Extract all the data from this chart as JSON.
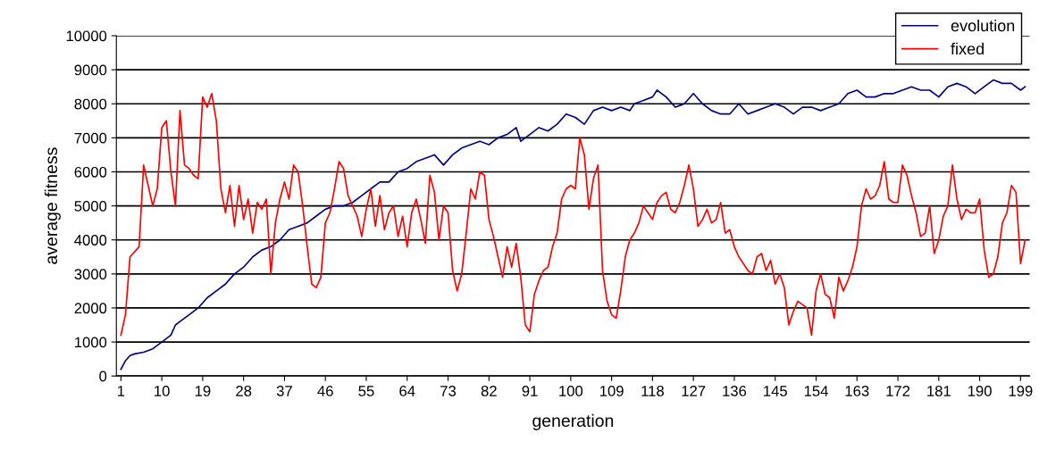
{
  "chart_data": {
    "type": "line",
    "xlabel": "generation",
    "ylabel": "average fitness",
    "xlim": [
      0,
      201
    ],
    "xticks": [
      1,
      10,
      19,
      28,
      37,
      46,
      55,
      64,
      73,
      82,
      91,
      100,
      109,
      118,
      127,
      136,
      145,
      154,
      163,
      172,
      181,
      190,
      199
    ],
    "ylim": [
      0,
      10000
    ],
    "yticks": [
      0,
      1000,
      2000,
      3000,
      4000,
      5000,
      6000,
      7000,
      8000,
      9000,
      10000
    ],
    "grid": "y",
    "legend": "top right",
    "marker": "none",
    "line_style": "solid",
    "series": [
      {
        "name": "evolution",
        "color": "#000080",
        "x": [
          1,
          2,
          3,
          4,
          6,
          8,
          10,
          12,
          13,
          14,
          16,
          18,
          20,
          22,
          24,
          26,
          28,
          30,
          32,
          34,
          36,
          38,
          40,
          42,
          44,
          46,
          48,
          50,
          52,
          54,
          56,
          58,
          60,
          62,
          64,
          66,
          68,
          70,
          72,
          74,
          76,
          78,
          80,
          82,
          84,
          86,
          88,
          89,
          91,
          93,
          95,
          97,
          99,
          101,
          103,
          105,
          107,
          109,
          111,
          113,
          114,
          116,
          118,
          119,
          121,
          123,
          125,
          127,
          129,
          131,
          133,
          135,
          137,
          139,
          141,
          143,
          145,
          147,
          149,
          151,
          153,
          155,
          157,
          159,
          161,
          163,
          165,
          167,
          169,
          171,
          173,
          175,
          177,
          179,
          181,
          183,
          185,
          187,
          189,
          191,
          193,
          195,
          197,
          199,
          200
        ],
        "values": [
          200,
          450,
          600,
          650,
          700,
          800,
          1000,
          1200,
          1500,
          1600,
          1800,
          2000,
          2300,
          2500,
          2700,
          3000,
          3200,
          3500,
          3700,
          3800,
          4000,
          4300,
          4400,
          4500,
          4700,
          4900,
          5000,
          5000,
          5100,
          5300,
          5500,
          5700,
          5700,
          6000,
          6100,
          6300,
          6400,
          6500,
          6200,
          6500,
          6700,
          6800,
          6900,
          6800,
          7000,
          7100,
          7300,
          6900,
          7100,
          7300,
          7200,
          7400,
          7700,
          7600,
          7400,
          7800,
          7900,
          7800,
          7900,
          7800,
          8000,
          8100,
          8200,
          8400,
          8200,
          7900,
          8000,
          8300,
          8000,
          7800,
          7700,
          7700,
          8000,
          7700,
          7800,
          7900,
          8000,
          7900,
          7700,
          7900,
          7900,
          7800,
          7900,
          8000,
          8300,
          8400,
          8200,
          8200,
          8300,
          8300,
          8400,
          8500,
          8400,
          8400,
          8200,
          8500,
          8600,
          8500,
          8300,
          8500,
          8700,
          8600,
          8600,
          8400,
          8500
        ]
      },
      {
        "name": "fixed",
        "color": "#ff0000",
        "x": [
          1,
          2,
          3,
          5,
          6,
          7,
          8,
          9,
          10,
          11,
          12,
          13,
          14,
          15,
          16,
          17,
          18,
          19,
          20,
          21,
          22,
          23,
          24,
          25,
          26,
          27,
          28,
          29,
          30,
          31,
          32,
          33,
          34,
          35,
          36,
          37,
          38,
          39,
          40,
          41,
          42,
          43,
          44,
          45,
          46,
          47,
          48,
          49,
          50,
          51,
          52,
          53,
          54,
          55,
          56,
          57,
          58,
          59,
          60,
          61,
          62,
          63,
          64,
          65,
          66,
          67,
          68,
          69,
          70,
          71,
          72,
          73,
          74,
          75,
          76,
          77,
          78,
          79,
          80,
          81,
          82,
          83,
          84,
          85,
          86,
          87,
          88,
          89,
          90,
          91,
          92,
          93,
          94,
          95,
          96,
          97,
          98,
          99,
          100,
          101,
          102,
          103,
          104,
          105,
          106,
          107,
          108,
          109,
          110,
          111,
          112,
          113,
          114,
          115,
          116,
          117,
          118,
          119,
          120,
          121,
          122,
          123,
          124,
          125,
          126,
          127,
          128,
          129,
          130,
          131,
          132,
          133,
          134,
          135,
          136,
          137,
          138,
          139,
          140,
          141,
          142,
          143,
          144,
          145,
          146,
          147,
          148,
          149,
          150,
          151,
          152,
          153,
          154,
          155,
          156,
          157,
          158,
          159,
          160,
          161,
          162,
          163,
          164,
          165,
          166,
          167,
          168,
          169,
          170,
          171,
          172,
          173,
          174,
          175,
          176,
          177,
          178,
          179,
          180,
          181,
          182,
          183,
          184,
          185,
          186,
          187,
          188,
          189,
          190,
          191,
          192,
          193,
          194,
          195,
          196,
          197,
          198,
          199,
          200
        ],
        "values": [
          1200,
          1800,
          3500,
          3800,
          6200,
          5600,
          5000,
          5500,
          7300,
          7500,
          6000,
          5000,
          7800,
          6200,
          6100,
          5900,
          5800,
          8200,
          7900,
          8300,
          7500,
          5500,
          4800,
          5600,
          4400,
          5600,
          4600,
          5200,
          4200,
          5100,
          4900,
          5200,
          3000,
          4500,
          5200,
          5700,
          5200,
          6200,
          6000,
          5000,
          3800,
          2700,
          2600,
          2900,
          4500,
          4800,
          5500,
          6300,
          6100,
          5300,
          5000,
          4700,
          4100,
          4900,
          5500,
          4400,
          5300,
          4300,
          4800,
          5000,
          4100,
          4700,
          3800,
          4800,
          5200,
          4600,
          3900,
          5900,
          5400,
          4000,
          5000,
          4800,
          3100,
          2500,
          3000,
          4200,
          5500,
          5200,
          6000,
          5900,
          4600,
          4100,
          3500,
          2900,
          3800,
          3200,
          3900,
          2900,
          1500,
          1300,
          2400,
          2800,
          3100,
          3200,
          3800,
          4200,
          5200,
          5500,
          5600,
          5500,
          7000,
          6500,
          4900,
          5800,
          6200,
          3100,
          2200,
          1800,
          1700,
          2500,
          3500,
          4000,
          4200,
          4500,
          5000,
          4800,
          4600,
          5100,
          5300,
          5400,
          4900,
          4800,
          5100,
          5600,
          6200,
          5500,
          4400,
          4600,
          4900,
          4500,
          4600,
          5100,
          4200,
          4300,
          3800,
          3500,
          3300,
          3100,
          3000,
          3500,
          3600,
          3100,
          3400,
          2700,
          3000,
          2600,
          1500,
          1900,
          2200,
          2100,
          2000,
          1200,
          2500,
          3000,
          2400,
          2300,
          1700,
          2900,
          2500,
          2800,
          3200,
          3800,
          5000,
          5500,
          5200,
          5300,
          5600,
          6300,
          5200,
          5100,
          5100,
          6200,
          5900,
          5300,
          4800,
          4100,
          4200,
          5000,
          3600,
          4000,
          4700,
          5000,
          6200,
          5200,
          4600,
          4900,
          4800,
          4800,
          5200,
          3700,
          2900,
          3000,
          3500,
          4500,
          4800,
          5600,
          5400,
          3300,
          4000
        ]
      }
    ]
  }
}
